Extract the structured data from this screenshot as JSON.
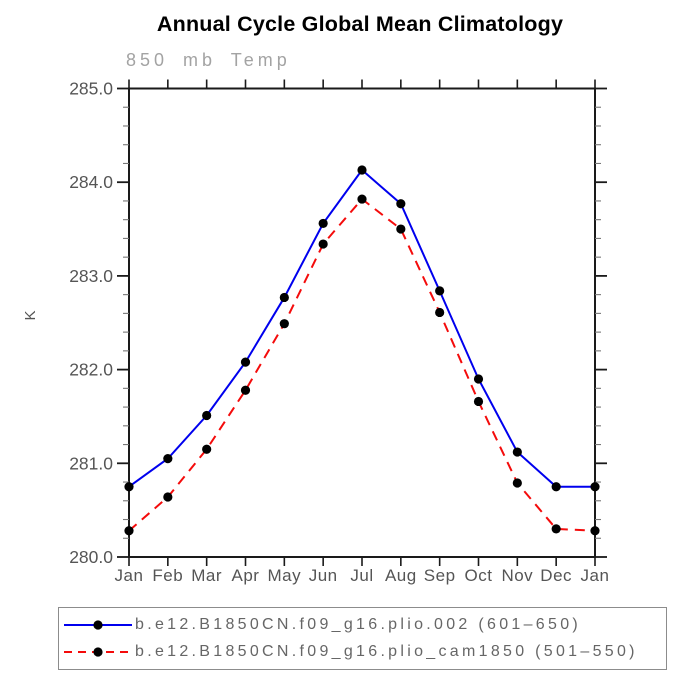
{
  "title": "Annual Cycle Global Mean Climatology",
  "subtitle": "850 mb Temp",
  "ylabel": "K",
  "colors": {
    "series1_blue": "#0000ee",
    "series2_red": "#f40b0b",
    "marker_black": "#000000",
    "axis": "#1a1a1a",
    "minor_tick": "#777777",
    "tick_label": "#555555",
    "subtitle_gray": "#a3a3a3",
    "legend_border": "#8c8c8c",
    "legend_text": "#666666",
    "title_color": "#000000"
  },
  "chart_data": {
    "type": "line",
    "title": "Annual Cycle Global Mean Climatology",
    "subtitle": "850 mb Temp",
    "xlabel": "",
    "ylabel": "K",
    "x_tick_labels": [
      "Jan",
      "Feb",
      "Mar",
      "Apr",
      "May",
      "Jun",
      "Jul",
      "Aug",
      "Sep",
      "Oct",
      "Nov",
      "Dec",
      "Jan"
    ],
    "ylim": [
      280.0,
      285.0
    ],
    "y_major_ticks": [
      280.0,
      281.0,
      282.0,
      283.0,
      284.0,
      285.0
    ],
    "y_tick_labels": [
      "280.0",
      "281.0",
      "282.0",
      "283.0",
      "284.0",
      "285.0"
    ],
    "y_minor_step": 0.2,
    "grid": false,
    "legend_position": "bottom",
    "series": [
      {
        "name": "b.e12.B1850CN.f09_g16.plio.002 (601–650)",
        "color": "#0000ee",
        "style": "solid",
        "marker": "black-dot",
        "values": [
          280.75,
          281.05,
          281.51,
          282.08,
          282.77,
          283.56,
          284.13,
          283.77,
          282.84,
          281.9,
          281.12,
          280.75,
          280.75
        ]
      },
      {
        "name": "b.e12.B1850CN.f09_g16.plio_cam1850 (501–550)",
        "color": "#f40b0b",
        "style": "dashed",
        "marker": "black-dot",
        "values": [
          280.28,
          280.64,
          281.15,
          281.78,
          282.49,
          283.34,
          283.82,
          283.5,
          282.61,
          281.66,
          280.79,
          280.3,
          280.28
        ]
      }
    ]
  }
}
